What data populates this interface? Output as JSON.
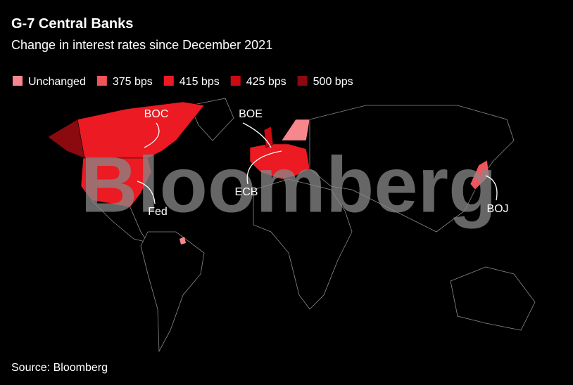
{
  "header": {
    "title": "G-7 Central Banks",
    "subtitle": "Change in interest rates since December 2021"
  },
  "legend": [
    {
      "label": "Unchanged",
      "color": "#f7878d"
    },
    {
      "label": "375 bps",
      "color": "#f2545b"
    },
    {
      "label": "415 bps",
      "color": "#ec1a22"
    },
    {
      "label": "425 bps",
      "color": "#cc0a12"
    },
    {
      "label": "500 bps",
      "color": "#8a0a0f"
    }
  ],
  "map": {
    "labels": [
      "BOC",
      "BOE",
      "ECB",
      "Fed",
      "BOJ"
    ]
  },
  "watermark": "Bloomberg",
  "footer": {
    "source": "Source: Bloomberg"
  }
}
